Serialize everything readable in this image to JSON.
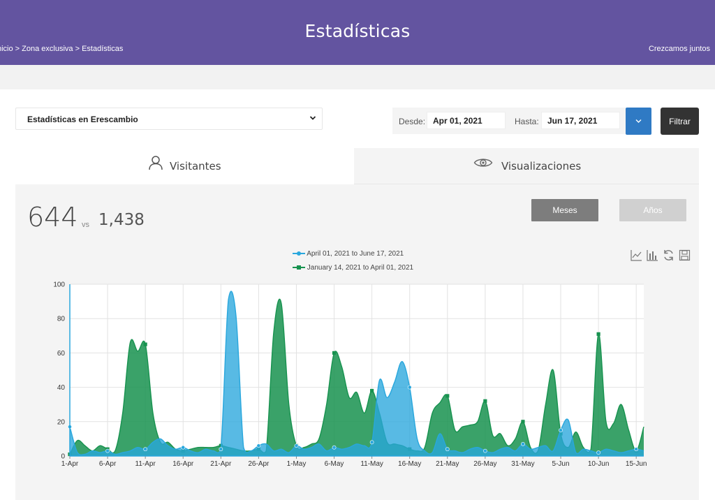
{
  "header": {
    "title": "Estadísticas",
    "breadcrumb": "nicio > Zona exclusiva > Estadísticas",
    "tagline": "Crezcamos juntos"
  },
  "filters": {
    "select_value": "Estadísticas en Erescambio",
    "from_label": "Desde:",
    "from_value": "Apr 01, 2021",
    "to_label": "Hasta:",
    "to_value": "Jun 17, 2021",
    "filter_label": "Filtrar"
  },
  "tabs": {
    "visitors": "Visitantes",
    "views": "Visualizaciones"
  },
  "summary": {
    "current": "644",
    "vs": "vs",
    "previous": "1,438"
  },
  "period_buttons": {
    "months": "Meses",
    "years": "Años"
  },
  "colors": {
    "header": "#6354a0",
    "series_current": "#29a7dd",
    "series_previous": "#17924f",
    "date_button": "#2f7ac4"
  },
  "icons": {
    "visitors": "user-icon",
    "views": "eye-icon",
    "tools": [
      "line-chart-icon",
      "bar-chart-icon",
      "refresh-icon",
      "save-icon"
    ]
  },
  "chart_data": {
    "type": "area",
    "ylim": [
      0,
      100
    ],
    "yticks": [
      "0",
      "20",
      "40",
      "60",
      "80",
      "100"
    ],
    "xticks": [
      "1-Apr",
      "6-Apr",
      "11-Apr",
      "16-Apr",
      "21-Apr",
      "26-Apr",
      "1-May",
      "6-May",
      "11-May",
      "16-May",
      "21-May",
      "26-May",
      "31-May",
      "5-Jun",
      "10-Jun",
      "15-Jun"
    ],
    "grid": true,
    "legend_position": "top-center",
    "series": [
      {
        "name": "April 01, 2021 to June 17, 2021",
        "color": "#29a7dd",
        "values": [
          17,
          2,
          1,
          3,
          2,
          3,
          1,
          2,
          3,
          5,
          4,
          8,
          10,
          6,
          4,
          5,
          3,
          2,
          4,
          3,
          4,
          91,
          82,
          5,
          3,
          6,
          7,
          3,
          4,
          2,
          6,
          4,
          5,
          7,
          3,
          5,
          4,
          5,
          7,
          6,
          8,
          44,
          34,
          43,
          55,
          40,
          10,
          3,
          2,
          13,
          4,
          3,
          2,
          4,
          5,
          3,
          2,
          4,
          5,
          3,
          7,
          4,
          5,
          6,
          3,
          15,
          21,
          2,
          4,
          3,
          2,
          4,
          3,
          2,
          3,
          4,
          3
        ]
      },
      {
        "name": "January 14, 2021 to April 01, 2021",
        "color": "#17924f",
        "values": [
          1,
          9,
          6,
          3,
          6,
          4,
          3,
          25,
          66,
          61,
          65,
          25,
          8,
          8,
          4,
          3,
          4,
          5,
          5,
          5,
          6,
          5,
          4,
          3,
          3,
          4,
          3,
          72,
          89,
          30,
          6,
          5,
          7,
          10,
          30,
          60,
          52,
          34,
          37,
          25,
          38,
          25,
          8,
          7,
          6,
          4,
          3,
          5,
          25,
          31,
          35,
          15,
          17,
          18,
          20,
          32,
          12,
          13,
          6,
          10,
          20,
          5,
          3,
          30,
          50,
          13,
          5,
          14,
          5,
          4,
          71,
          20,
          19,
          30,
          15,
          3,
          17
        ]
      }
    ]
  }
}
